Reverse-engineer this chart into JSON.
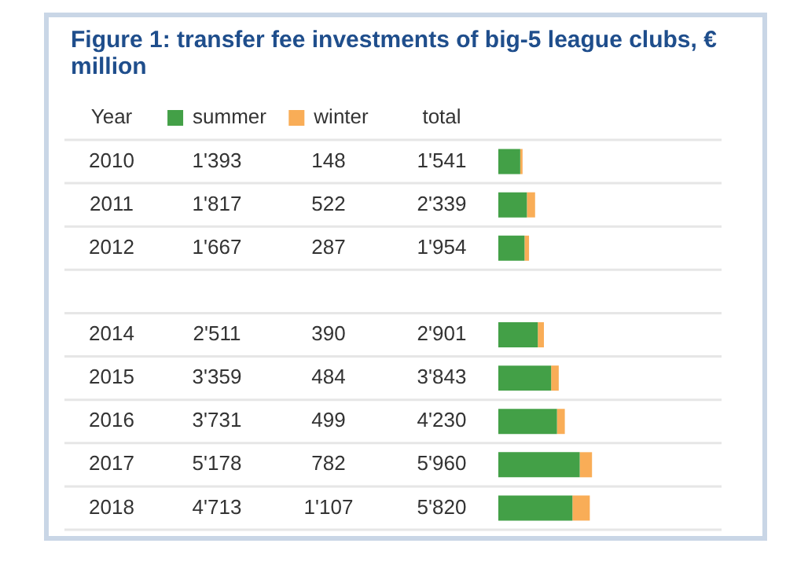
{
  "chart_data": {
    "type": "bar",
    "orientation": "horizontal",
    "stacked": true,
    "title": "Figure 1: transfer fee investments of big-5 league clubs, € million",
    "ylabel": "Year",
    "annotations": [
      "total"
    ],
    "legend": "top left",
    "categories": [
      "2010",
      "2011",
      "2012",
      null,
      "2014",
      "2015",
      "2016",
      "2017",
      "2018"
    ],
    "series": [
      {
        "name": "summer",
        "color": "#43a047",
        "values": [
          1393,
          1817,
          1667,
          null,
          2511,
          3359,
          3731,
          5178,
          4713
        ],
        "value_labels": [
          "1'393",
          "1'817",
          "1'667",
          null,
          "2'511",
          "3'359",
          "3'731",
          "5'178",
          "4'713"
        ]
      },
      {
        "name": "winter",
        "color": "#f9ad57",
        "values": [
          148,
          522,
          287,
          null,
          390,
          484,
          499,
          782,
          1107
        ],
        "value_labels": [
          "148",
          "522",
          "287",
          null,
          "390",
          "484",
          "499",
          "782",
          "1'107"
        ]
      }
    ],
    "totals": [
      "1'541",
      "2'339",
      "1'954",
      null,
      "2'901",
      "3'843",
      "4'230",
      "5'960",
      "5'820"
    ]
  }
}
